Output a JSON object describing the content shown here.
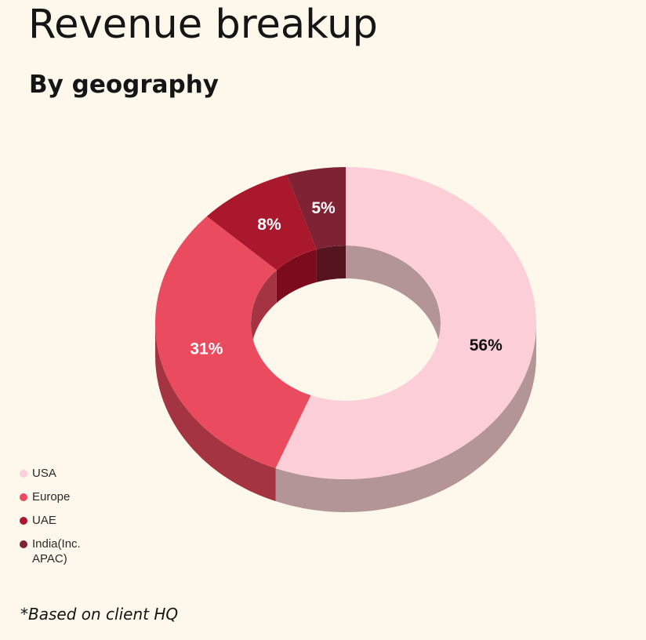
{
  "title": "Revenue breakup",
  "subtitle": "By geography",
  "footnote": "*Based on client HQ",
  "chart_data": {
    "type": "pie",
    "subtype": "donut-3d",
    "title": "Revenue breakup",
    "subtitle": "By geography",
    "start_angle_deg": 0,
    "direction": "clockwise",
    "series": [
      {
        "name": "USA",
        "value": 56,
        "label": "56%",
        "color": "#fccfd8",
        "side_color": "#b39597",
        "label_color": "#111111"
      },
      {
        "name": "Europe",
        "value": 31,
        "label": "31%",
        "color": "#ea4b5e",
        "side_color": "#a43442",
        "label_color": "#ffffff"
      },
      {
        "name": "UAE",
        "value": 8,
        "label": "8%",
        "color": "#a9182d",
        "side_color": "#7c0c1d",
        "label_color": "#ffffff"
      },
      {
        "name": "India(Inc. APAC)",
        "value": 5,
        "label": "5%",
        "color": "#7f2233",
        "side_color": "#56141f",
        "label_color": "#ffffff"
      }
    ],
    "legend": {
      "position": "bottom-left",
      "items": [
        "USA",
        "Europe",
        "UAE",
        "India(Inc. APAC)"
      ]
    }
  }
}
